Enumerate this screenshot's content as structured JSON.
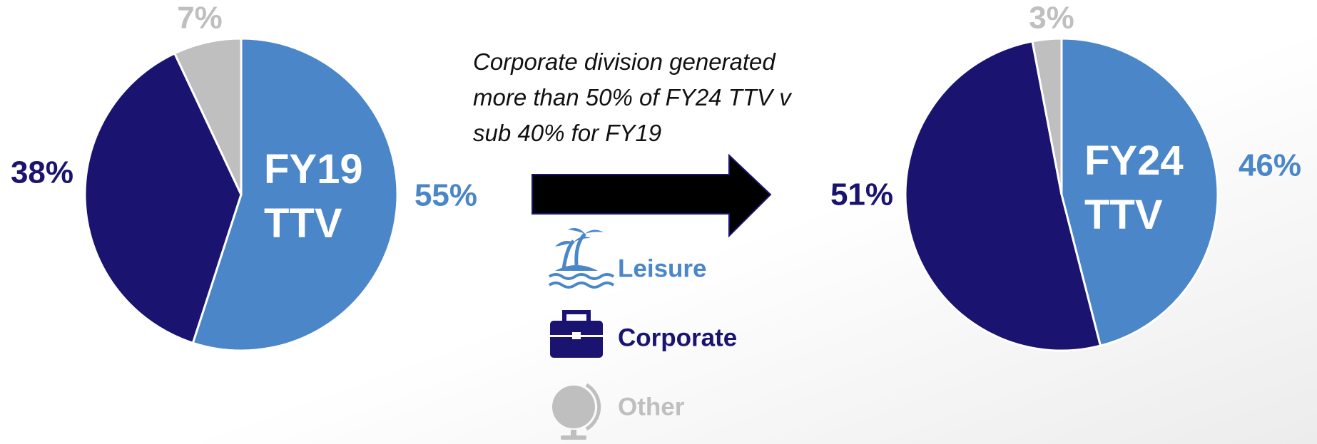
{
  "chart_data": [
    {
      "type": "pie",
      "title": "FY19 TTV",
      "categories": [
        "Leisure",
        "Corporate",
        "Other"
      ],
      "values": [
        55,
        38,
        7
      ],
      "value_labels": [
        "55%",
        "38%",
        "7%"
      ],
      "colors": [
        "#4a86c8",
        "#1a1370",
        "#bfbfbf"
      ],
      "legend": true
    },
    {
      "type": "pie",
      "title": "FY24 TTV",
      "categories": [
        "Leisure",
        "Corporate",
        "Other"
      ],
      "values": [
        46,
        51,
        3
      ],
      "value_labels": [
        "46%",
        "51%",
        "3%"
      ],
      "colors": [
        "#4a86c8",
        "#1a1370",
        "#bfbfbf"
      ]
    }
  ],
  "annotation": "Corporate division generated more than 50% of FY24 TTV v sub 40% for FY19"
}
